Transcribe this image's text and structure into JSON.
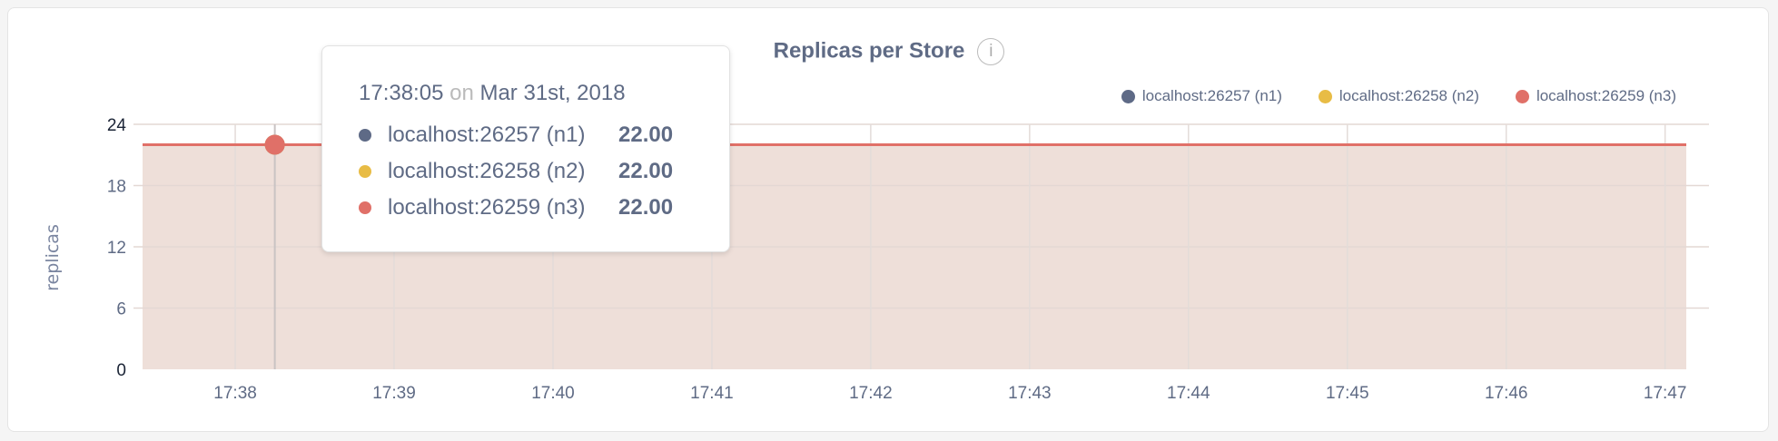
{
  "chart_data": {
    "type": "area",
    "title": "Replicas per Store",
    "info_icon": "info-icon",
    "ylabel": "replicas",
    "xlabel": "",
    "ylim": [
      0,
      24
    ],
    "yticks": [
      "0",
      "6",
      "12",
      "18",
      "24"
    ],
    "xlim": [
      "17:37:25",
      "17:47:08"
    ],
    "xticks": [
      "17:38",
      "17:39",
      "17:40",
      "17:41",
      "17:42",
      "17:43",
      "17:44",
      "17:45",
      "17:46",
      "17:47"
    ],
    "grid": true,
    "legend_position": "top-right",
    "series": [
      {
        "name": "localhost:26257 (n1)",
        "color": "#5e6a86",
        "x": [
          "17:37:25",
          "17:47:08"
        ],
        "values": [
          22,
          22
        ]
      },
      {
        "name": "localhost:26258 (n2)",
        "color": "#e8bc45",
        "x": [
          "17:37:25",
          "17:47:08"
        ],
        "values": [
          22,
          22
        ]
      },
      {
        "name": "localhost:26259 (n3)",
        "color": "#e07068",
        "x": [
          "17:37:25",
          "17:47:08"
        ],
        "values": [
          22,
          22
        ]
      }
    ],
    "fill_color": "#eedfd9",
    "tooltip": {
      "time": "17:38:05",
      "on": "on",
      "date": "Mar 31st, 2018",
      "rows": [
        {
          "label": "localhost:26257 (n1)",
          "value": "22.00",
          "color": "#5e6a86"
        },
        {
          "label": "localhost:26258 (n2)",
          "value": "22.00",
          "color": "#e8bc45"
        },
        {
          "label": "localhost:26259 (n3)",
          "value": "22.00",
          "color": "#e07068"
        }
      ]
    }
  }
}
